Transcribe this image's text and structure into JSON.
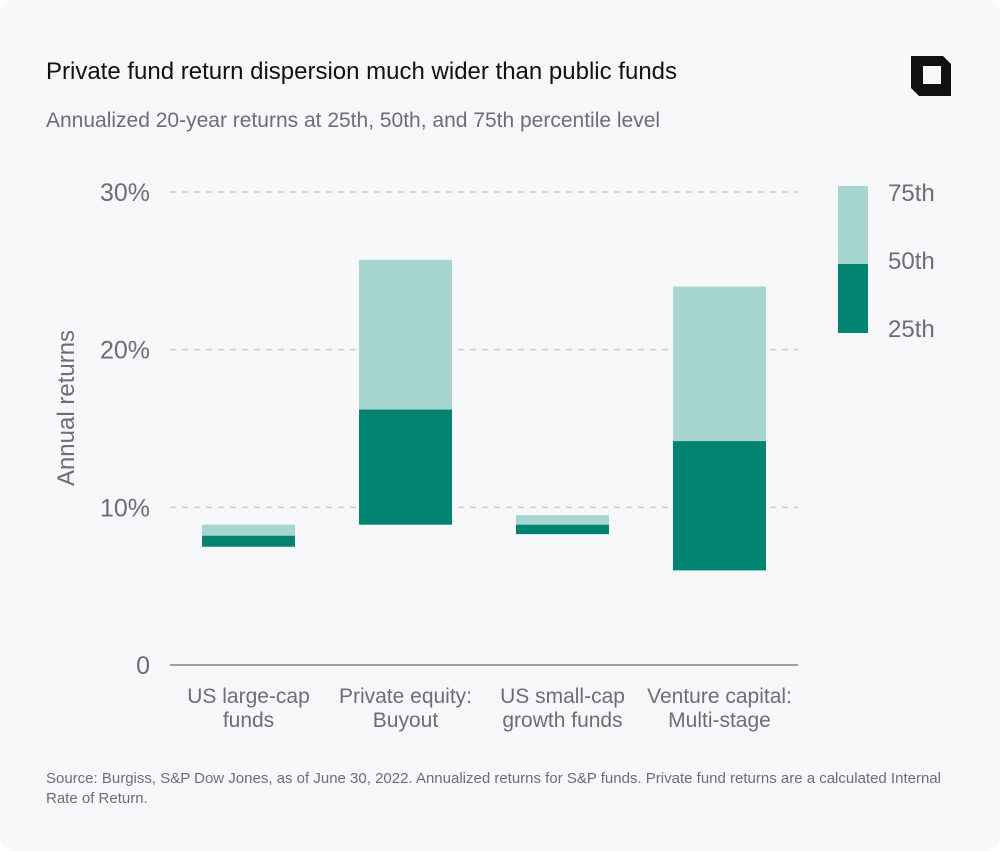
{
  "header": {
    "title": "Private fund return dispersion much wider than public funds",
    "subtitle": "Annualized 20-year returns at 25th, 50th, and 75th percentile level"
  },
  "logo": {
    "icon": "corner-square-logo-icon"
  },
  "colors": {
    "lower_segment": "#008471",
    "upper_segment": "#a7d5cf",
    "gridline": "#c9cccf",
    "axis": "#9ea2a6",
    "text_muted": "#6b6f73"
  },
  "chart_data": {
    "type": "bar",
    "stacked_range": true,
    "ylabel": "Annual returns",
    "ylim": [
      0,
      30
    ],
    "yticks": [
      {
        "value": 0,
        "label": "0"
      },
      {
        "value": 10,
        "label": "10%"
      },
      {
        "value": 20,
        "label": "20%"
      },
      {
        "value": 30,
        "label": "30%"
      }
    ],
    "grid": true,
    "legend_position": "top-right",
    "legend": [
      {
        "label": "75th"
      },
      {
        "label": "50th"
      },
      {
        "label": "25th"
      }
    ],
    "categories": [
      {
        "lines": [
          "US large-cap",
          "funds"
        ],
        "p25": 7.5,
        "p50": 8.2,
        "p75": 8.9
      },
      {
        "lines": [
          "Private equity:",
          "Buyout"
        ],
        "p25": 8.9,
        "p50": 16.2,
        "p75": 25.7
      },
      {
        "lines": [
          "US small-cap",
          "growth funds"
        ],
        "p25": 8.3,
        "p50": 8.9,
        "p75": 9.5
      },
      {
        "lines": [
          "Venture capital:",
          "Multi-stage"
        ],
        "p25": 6.0,
        "p50": 14.2,
        "p75": 24.0
      }
    ]
  },
  "footer": {
    "source": "Source:  Burgiss, S&P Dow Jones, as of June 30, 2022. Annualized returns for S&P funds. Private fund returns are a calculated Internal Rate of Return."
  }
}
